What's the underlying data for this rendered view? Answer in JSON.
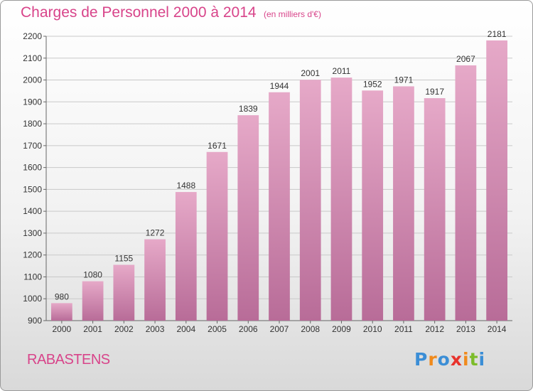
{
  "title": "Charges de Personnel 2000 à 2014",
  "subtitle": "(en milliers d'€)",
  "city": "RABASTENS",
  "logo": {
    "letters": [
      "P",
      "r",
      "o",
      "x",
      "i",
      "t",
      "i"
    ],
    "colors": [
      "#3b8ed6",
      "#f08a1c",
      "#3b8ed6",
      "#e8322c",
      "#f08a1c",
      "#7cbc2a",
      "#3b8ed6"
    ]
  },
  "chart_data": {
    "type": "bar",
    "categories": [
      "2000",
      "2001",
      "2002",
      "2003",
      "2004",
      "2005",
      "2006",
      "2007",
      "2008",
      "2009",
      "2010",
      "2011",
      "2012",
      "2013",
      "2014"
    ],
    "values": [
      980,
      1080,
      1155,
      1272,
      1488,
      1671,
      1839,
      1944,
      2001,
      2011,
      1952,
      1971,
      1917,
      2067,
      2181
    ],
    "ylim": [
      900,
      2200
    ],
    "yticks": [
      900,
      1000,
      1100,
      1200,
      1300,
      1400,
      1500,
      1600,
      1700,
      1800,
      1900,
      2000,
      2100,
      2200
    ],
    "grid": true,
    "bar_color_light": "#e6a9c8",
    "bar_color_dark": "#b86c98"
  }
}
